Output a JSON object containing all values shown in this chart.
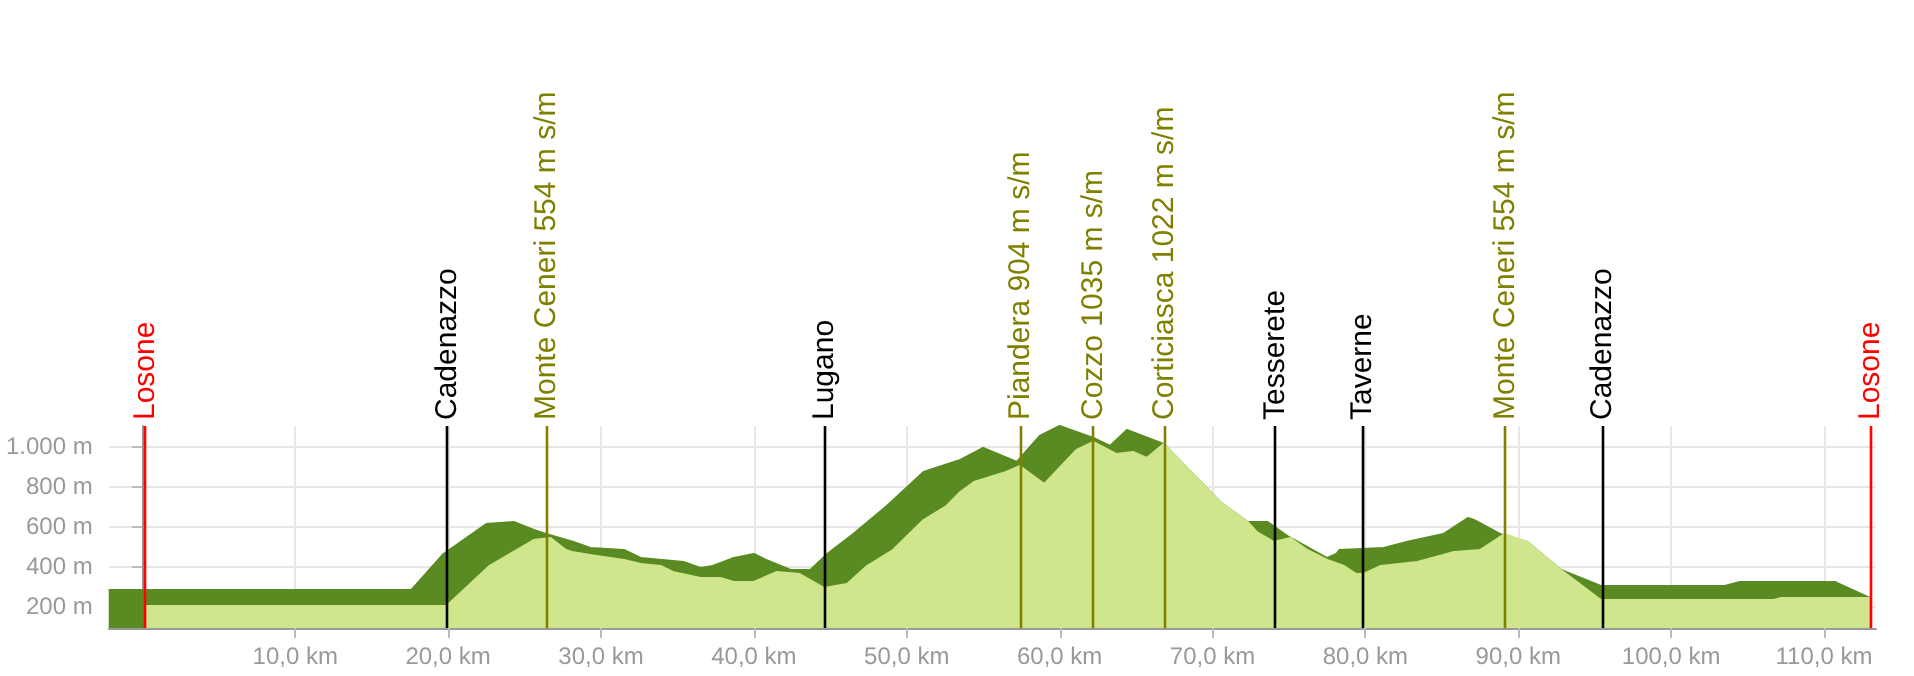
{
  "chart_data": {
    "type": "area",
    "series": [
      {
        "color": "#5a8a22",
        "x": [
          -2.2,
          17.6,
          19.7,
          22.5,
          24.3,
          25.6,
          26.4,
          28.2,
          29.3,
          31.5,
          32.6,
          35.4,
          36.5,
          37.3,
          38.7,
          40.0,
          40.8,
          42.4,
          43.7,
          44.8,
          46.5,
          48.7,
          51.1,
          53.5,
          55.0,
          57.2,
          58.7,
          60.0,
          62.2,
          63.3,
          64.4,
          66.8,
          70.5,
          72.3,
          73.6,
          74.9,
          77.5,
          78.1,
          78.3,
          81.2,
          82.7,
          85.1,
          86.7,
          87.1,
          88.8,
          90.6,
          92.8,
          95.4,
          103.5,
          104.5,
          110.7,
          113.0
        ],
        "values": [
          280,
          280,
          460,
          610,
          620,
          580,
          560,
          520,
          490,
          480,
          440,
          420,
          390,
          400,
          440,
          460,
          430,
          380,
          380,
          460,
          560,
          700,
          870,
          930,
          990,
          920,
          1050,
          1100,
          1040,
          1000,
          1080,
          1010,
          720,
          620,
          620,
          550,
          440,
          460,
          480,
          490,
          520,
          560,
          640,
          630,
          560,
          520,
          380,
          300,
          300,
          320,
          320,
          240
        ]
      },
      {
        "color": "#cfe68c",
        "x": [
          0.2,
          19.9,
          22.7,
          25.6,
          26.7,
          27.7,
          28.1,
          29.7,
          31.5,
          32.6,
          33.9,
          34.7,
          36.5,
          37.8,
          38.7,
          40.0,
          41.5,
          43.0,
          44.6,
          46.1,
          47.4,
          49.1,
          51.1,
          52.6,
          53.5,
          54.4,
          56.5,
          57.4,
          59.0,
          61.1,
          62.2,
          63.7,
          64.8,
          65.7,
          66.8,
          70.5,
          72.3,
          72.9,
          74.0,
          75.1,
          76.2,
          77.5,
          78.6,
          79.4,
          79.9,
          81.0,
          83.4,
          85.8,
          87.5,
          89.1,
          90.6,
          92.8,
          95.4,
          106.7,
          107.2,
          113.0
        ],
        "values": [
          200,
          200,
          400,
          530,
          540,
          480,
          470,
          450,
          430,
          410,
          400,
          370,
          340,
          340,
          320,
          320,
          370,
          360,
          290,
          310,
          400,
          480,
          630,
          700,
          770,
          820,
          870,
          900,
          810,
          980,
          1020,
          960,
          970,
          940,
          1010,
          720,
          620,
          570,
          520,
          540,
          480,
          430,
          400,
          360,
          360,
          400,
          420,
          470,
          480,
          560,
          520,
          380,
          230,
          230,
          240,
          240
        ]
      }
    ],
    "xlim": [
      -2.2,
      113.4
    ],
    "xticks": [
      {
        "value": 10,
        "label": "10,0 km"
      },
      {
        "value": 20,
        "label": "20,0 km"
      },
      {
        "value": 30,
        "label": "30,0 km"
      },
      {
        "value": 40,
        "label": "40,0 km"
      },
      {
        "value": 50,
        "label": "50,0 km"
      },
      {
        "value": 60,
        "label": "60,0 km"
      },
      {
        "value": 70,
        "label": "70,0 km"
      },
      {
        "value": 80,
        "label": "80,0 km"
      },
      {
        "value": 90,
        "label": "90,0 km"
      },
      {
        "value": 100,
        "label": "100,0 km"
      },
      {
        "value": 110,
        "label": "110,0 km"
      }
    ],
    "ylim": [
      90,
      1100
    ],
    "yticks": [
      {
        "value": 200,
        "label": "200 m"
      },
      {
        "value": 400,
        "label": "400 m"
      },
      {
        "value": 600,
        "label": "600 m"
      },
      {
        "value": 800,
        "label": "800 m"
      },
      {
        "value": 1000,
        "label": "1.000 m"
      }
    ],
    "grid": true,
    "ref_lines": [
      {
        "axis": "x",
        "value": 0.2,
        "label": "Losone",
        "color": "#ff0000"
      },
      {
        "axis": "x",
        "value": 19.9,
        "label": "Cadenazzo",
        "color": "#000000"
      },
      {
        "axis": "x",
        "value": 26.4,
        "label": "Monte Ceneri 554 m s/m",
        "color": "#808000"
      },
      {
        "axis": "x",
        "value": 44.6,
        "label": "Lugano",
        "color": "#000000"
      },
      {
        "axis": "x",
        "value": 57.4,
        "label": "Piandera 904 m s/m",
        "color": "#808000"
      },
      {
        "axis": "x",
        "value": 62.2,
        "label": "Cozzo 1035 m s/m",
        "color": "#808000"
      },
      {
        "axis": "x",
        "value": 66.8,
        "label": "Corticiasca 1022 m s/m",
        "color": "#808000"
      },
      {
        "axis": "x",
        "value": 74.1,
        "label": "Tesserete",
        "color": "#000000"
      },
      {
        "axis": "x",
        "value": 79.8,
        "label": "Taverne",
        "color": "#000000"
      },
      {
        "axis": "x",
        "value": 89.1,
        "label": "Monte Ceneri 554 m s/m",
        "color": "#808000"
      },
      {
        "axis": "x",
        "value": 95.5,
        "label": "Cadenazzo",
        "color": "#000000"
      },
      {
        "axis": "x",
        "value": 113.0,
        "label": "Losone",
        "color": "#ff0000"
      }
    ]
  }
}
